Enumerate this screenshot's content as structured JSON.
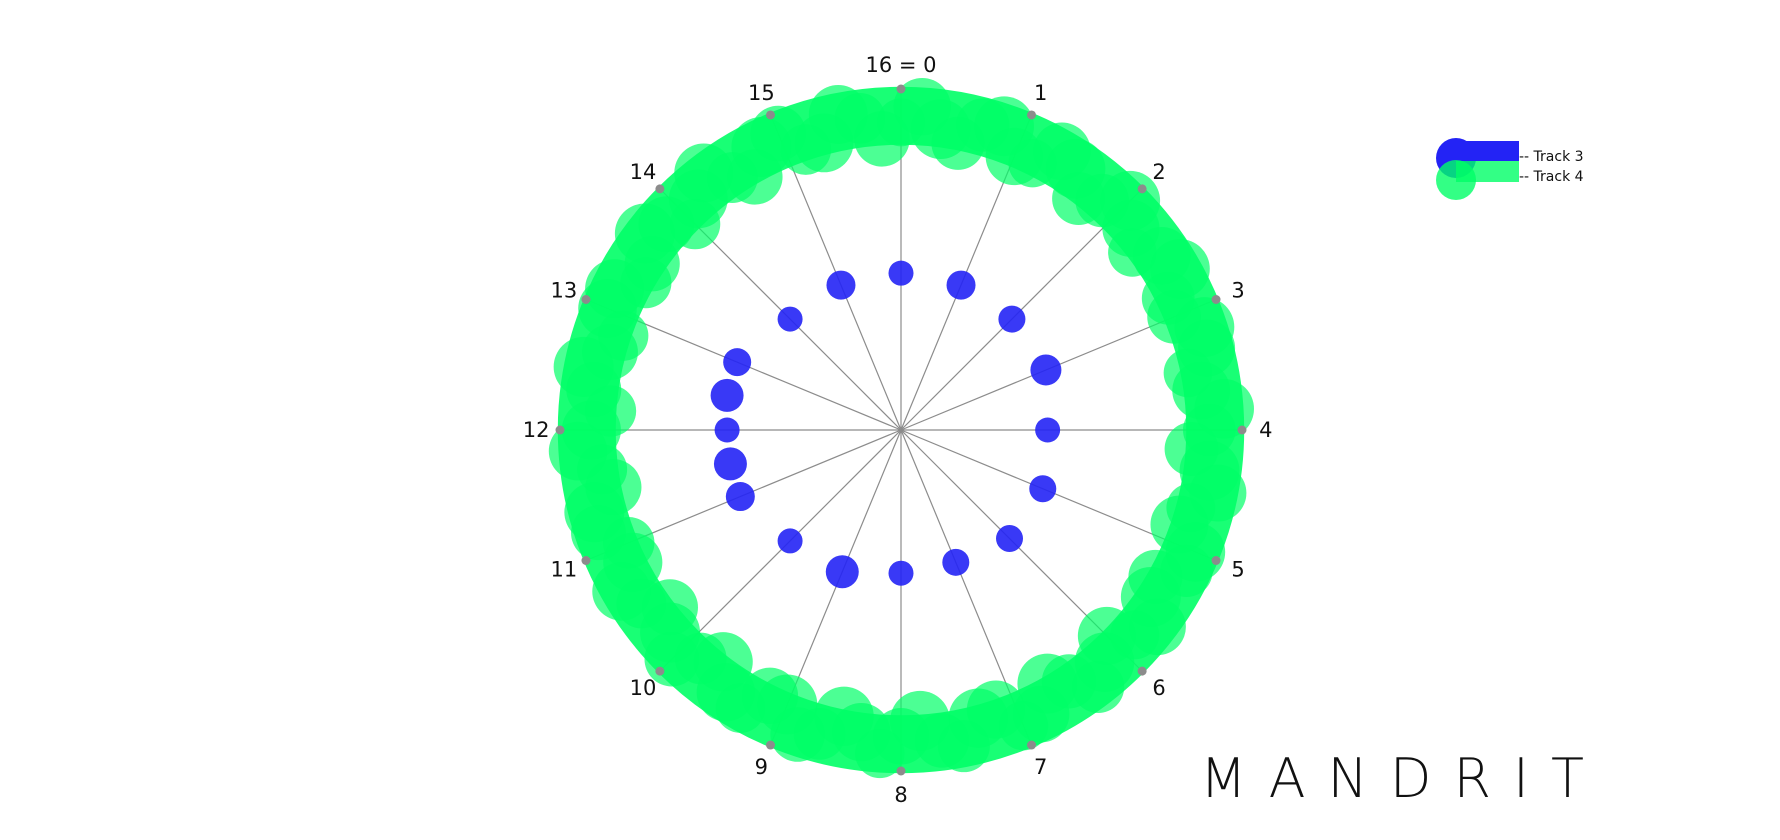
{
  "brand": "MANDRIT",
  "colors": {
    "track3": "#2323f5",
    "track4": "#00ff66",
    "spoke": "#8c8c8c",
    "marker": "#8c8c8c",
    "text": "#111111"
  },
  "chart_data": {
    "type": "radial",
    "steps": 16,
    "spoke_labels": [
      "16 = 0",
      "1",
      "2",
      "3",
      "4",
      "5",
      "6",
      "7",
      "8",
      "9",
      "10",
      "11",
      "12",
      "13",
      "14",
      "15"
    ],
    "legend": [
      {
        "label": "-- Track 3"
      },
      {
        "label": "-- Track 4"
      }
    ],
    "series": [
      {
        "name": "Track 3",
        "points": [
          {
            "step": 0,
            "radius": 0.46,
            "size": 0.45
          },
          {
            "step": 1,
            "radius": 0.46,
            "size": 0.65
          },
          {
            "step": 2,
            "radius": 0.46,
            "size": 0.55
          },
          {
            "step": 3,
            "radius": 0.46,
            "size": 0.75
          },
          {
            "step": 4,
            "radius": 0.43,
            "size": 0.45
          },
          {
            "step": 5,
            "radius": 0.45,
            "size": 0.55
          },
          {
            "step": 6,
            "radius": 0.45,
            "size": 0.55
          },
          {
            "step": 7,
            "radius": 0.42,
            "size": 0.55
          },
          {
            "step": 8,
            "radius": 0.42,
            "size": 0.45
          },
          {
            "step": 9,
            "radius": 0.45,
            "size": 0.85
          },
          {
            "step": 10,
            "radius": 0.46,
            "size": 0.45
          },
          {
            "step": 11,
            "radius": 0.51,
            "size": 0.65
          },
          {
            "step": 11.5,
            "radius": 0.51,
            "size": 0.85
          },
          {
            "step": 12,
            "radius": 0.51,
            "size": 0.45
          },
          {
            "step": 12.5,
            "radius": 0.52,
            "size": 0.85
          },
          {
            "step": 13,
            "radius": 0.52,
            "size": 0.6
          },
          {
            "step": 14,
            "radius": 0.46,
            "size": 0.45
          },
          {
            "step": 15,
            "radius": 0.46,
            "size": 0.65
          }
        ]
      },
      {
        "name": "Track 4",
        "band": {
          "radius": 0.97,
          "width": 0.17
        }
      }
    ]
  }
}
